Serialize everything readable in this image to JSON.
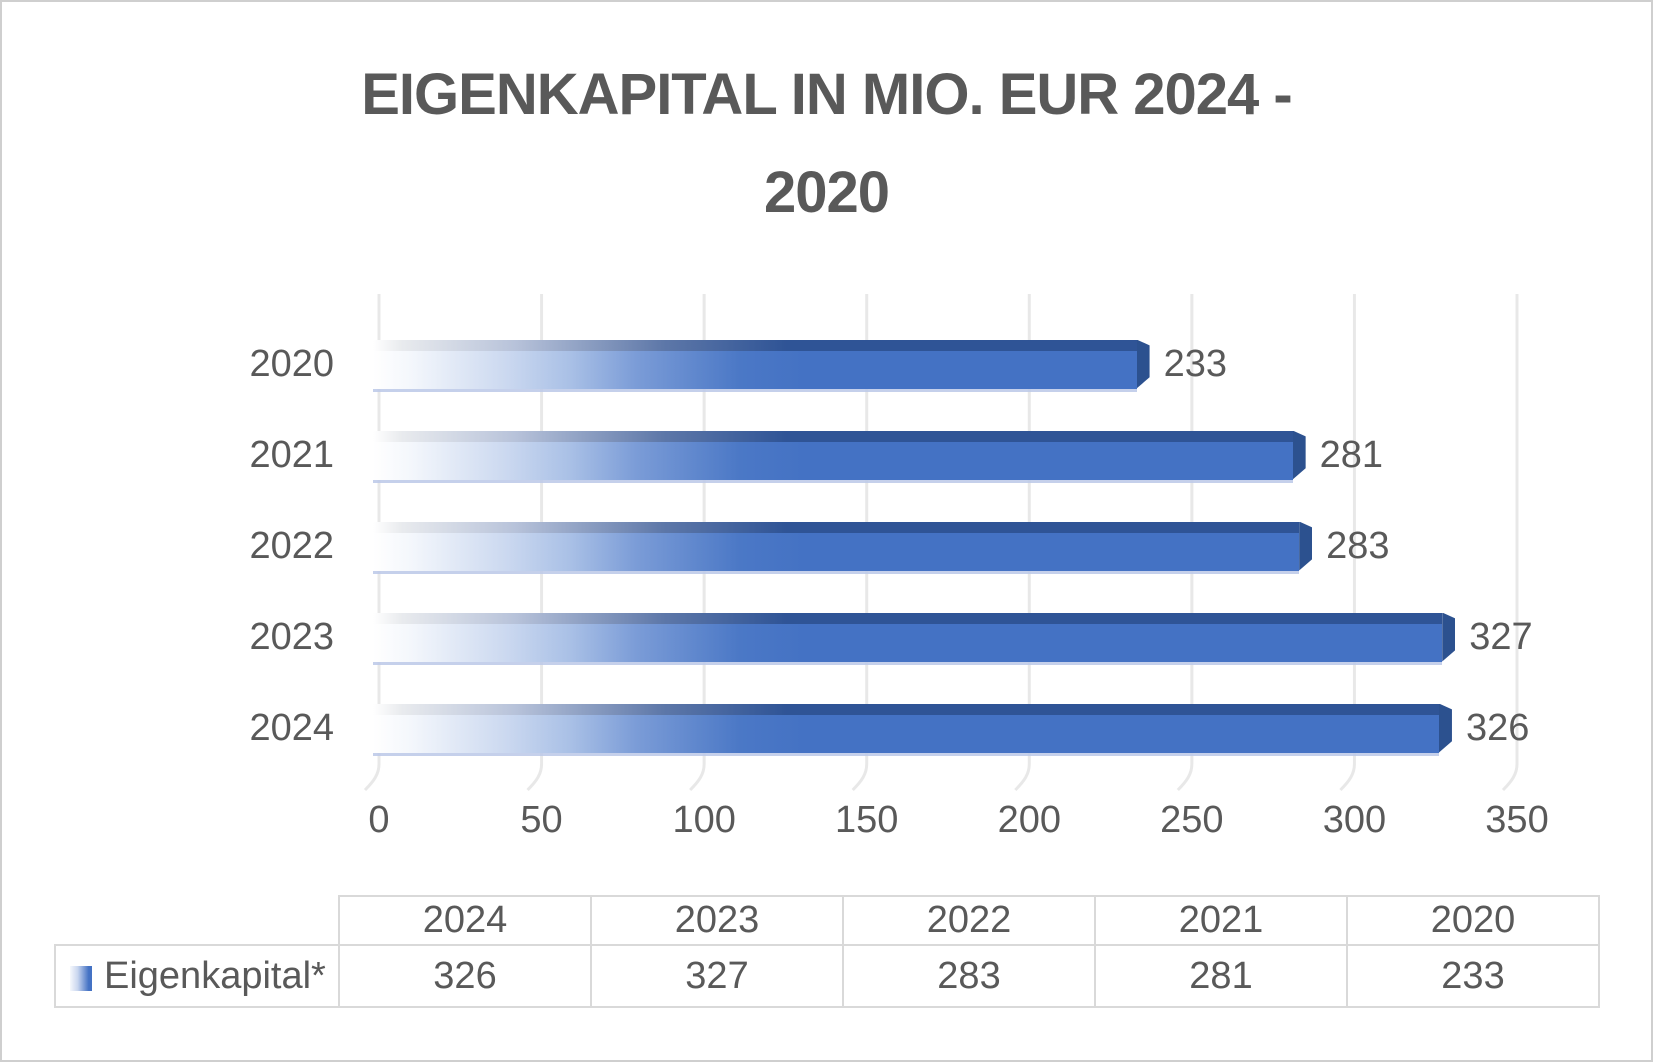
{
  "title": {
    "line1": "EIGENKAPITAL IN MIO. EUR 2024 -",
    "line2": "2020"
  },
  "chart_data": {
    "type": "bar",
    "orientation": "horizontal",
    "title": "EIGENKAPITAL IN MIO. EUR 2024 - 2020",
    "categories": [
      "2020",
      "2021",
      "2022",
      "2023",
      "2024"
    ],
    "series": [
      {
        "name": "Eigenkapital*",
        "values": [
          233,
          281,
          283,
          327,
          326
        ]
      }
    ],
    "x_ticks": [
      "0",
      "50",
      "100",
      "150",
      "200",
      "250",
      "300",
      "350"
    ],
    "xlim": [
      0,
      350
    ],
    "grid": true,
    "value_labels_shown": true,
    "legend_position": "bottom-table",
    "colors": {
      "bar_main": "#4472C4",
      "bar_top": "#2F5496",
      "bar_side": "#2C518F",
      "text": "#595959",
      "gridline": "#E8E8E8",
      "table_border": "#D9D9D9"
    }
  },
  "table": {
    "columns": [
      "2024",
      "2023",
      "2022",
      "2021",
      "2020"
    ],
    "rows": [
      {
        "label": "Eigenkapital*",
        "values": [
          "326",
          "327",
          "283",
          "281",
          "233"
        ]
      }
    ]
  }
}
